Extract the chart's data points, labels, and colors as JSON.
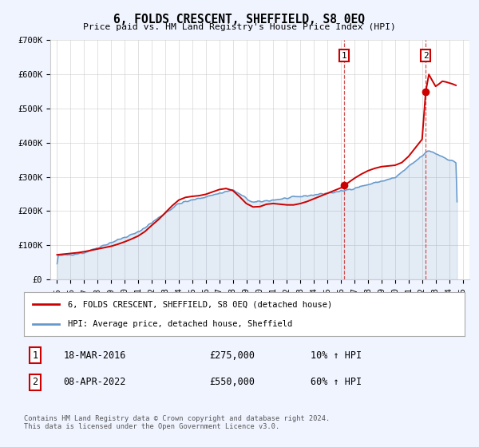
{
  "title": "6, FOLDS CRESCENT, SHEFFIELD, S8 0EQ",
  "subtitle": "Price paid vs. HM Land Registry's House Price Index (HPI)",
  "ylim": [
    0,
    700000
  ],
  "yticks": [
    0,
    100000,
    200000,
    300000,
    400000,
    500000,
    600000,
    700000
  ],
  "ytick_labels": [
    "£0",
    "£100K",
    "£200K",
    "£300K",
    "£400K",
    "£500K",
    "£600K",
    "£700K"
  ],
  "xlim_start": 1994.5,
  "xlim_end": 2025.5,
  "xticks": [
    1995,
    1996,
    1997,
    1998,
    1999,
    2000,
    2001,
    2002,
    2003,
    2004,
    2005,
    2006,
    2007,
    2008,
    2009,
    2010,
    2011,
    2012,
    2013,
    2014,
    2015,
    2016,
    2017,
    2018,
    2019,
    2020,
    2021,
    2022,
    2023,
    2024,
    2025
  ],
  "red_color": "#cc0000",
  "blue_color": "#6699cc",
  "vline_color": "#cc3333",
  "background_color": "#f0f4ff",
  "grid_color": "#cccccc",
  "legend_entry1": "6, FOLDS CRESCENT, SHEFFIELD, S8 0EQ (detached house)",
  "legend_entry2": "HPI: Average price, detached house, Sheffield",
  "event1_label": "1",
  "event1_x": 2016.21,
  "event1_y": 275000,
  "event1_date": "18-MAR-2016",
  "event1_price": "£275,000",
  "event1_hpi": "10% ↑ HPI",
  "event2_label": "2",
  "event2_x": 2022.27,
  "event2_y": 550000,
  "event2_date": "08-APR-2022",
  "event2_price": "£550,000",
  "event2_hpi": "60% ↑ HPI",
  "footer": "Contains HM Land Registry data © Crown copyright and database right 2024.\nThis data is licensed under the Open Government Licence v3.0."
}
